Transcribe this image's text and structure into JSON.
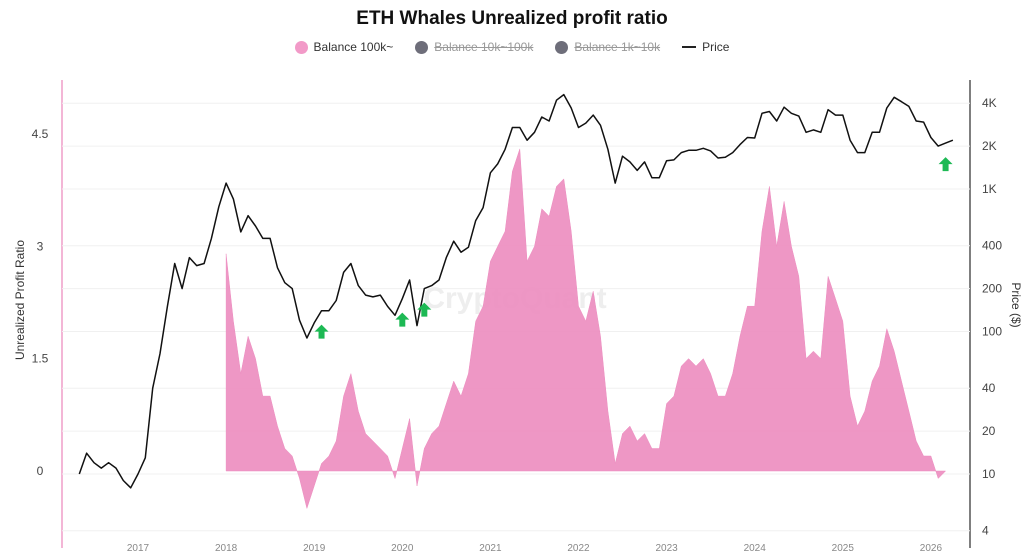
{
  "chart_data": {
    "type": "area+line",
    "title": "ETH Whales Unrealized profit ratio",
    "watermark": "CryptoQuant",
    "ylabel_left": "Unrealized Profit Ratio",
    "ylabel_right": "Price ($)",
    "left_ticks": [
      "0",
      "1.5",
      "3",
      "4.5"
    ],
    "left_tick_values": [
      0,
      1.5,
      3,
      4.5
    ],
    "right_ticks": [
      "4K",
      "2K",
      "1K",
      "400",
      "200",
      "100",
      "40",
      "20",
      "10",
      "4"
    ],
    "right_tick_values": [
      4000,
      2000,
      1000,
      400,
      200,
      100,
      40,
      20,
      10,
      4
    ],
    "right_scale": "log",
    "x_ticks": [
      "2017",
      "2018",
      "2019",
      "2020",
      "2021",
      "2022",
      "2023",
      "2024",
      "2025",
      "2026"
    ],
    "grid": true,
    "legend_position": "top",
    "legend": [
      {
        "name": "Balance 100k~",
        "color": "#f29ac8",
        "active": true
      },
      {
        "name": "Balance 10k~100k",
        "color": "#6e6e7a",
        "active": false
      },
      {
        "name": "Balance 1k~10k",
        "color": "#6e6e7a",
        "active": false
      },
      {
        "name": "Price",
        "color": "#111111",
        "active": true
      }
    ],
    "series": [
      {
        "name": "Balance 100k~",
        "axis": "left",
        "color": "#ec8cbf",
        "start": "2018-01",
        "values": [
          2.9,
          2.0,
          1.3,
          1.8,
          1.5,
          1.0,
          1.0,
          0.6,
          0.3,
          0.2,
          -0.1,
          -0.5,
          -0.2,
          0.1,
          0.2,
          0.4,
          1.0,
          1.3,
          0.8,
          0.5,
          0.4,
          0.3,
          0.2,
          -0.1,
          0.3,
          0.7,
          -0.2,
          0.3,
          0.5,
          0.6,
          0.9,
          1.2,
          1.0,
          1.3,
          2.0,
          2.2,
          2.8,
          3.0,
          3.2,
          4.0,
          4.3,
          2.8,
          3.0,
          3.5,
          3.4,
          3.8,
          3.9,
          3.2,
          2.2,
          2.0,
          2.4,
          1.8,
          0.8,
          0.1,
          0.5,
          0.6,
          0.4,
          0.5,
          0.3,
          0.3,
          0.9,
          1.0,
          1.4,
          1.5,
          1.4,
          1.5,
          1.3,
          1.0,
          1.0,
          1.3,
          1.8,
          2.2,
          2.2,
          3.2,
          3.8,
          3.0,
          3.6,
          3.0,
          2.6,
          1.5,
          1.6,
          1.5,
          2.6,
          2.3,
          2.0,
          1.0,
          0.6,
          0.8,
          1.2,
          1.4,
          1.9,
          1.6,
          1.2,
          0.8,
          0.4,
          0.2,
          0.2,
          -0.1,
          0.0
        ]
      },
      {
        "name": "Price",
        "axis": "right",
        "color": "#111111",
        "start": "2016-05",
        "values": [
          10,
          14,
          12,
          11,
          12,
          11,
          9,
          8,
          10,
          13,
          40,
          70,
          150,
          300,
          200,
          330,
          290,
          300,
          450,
          750,
          1100,
          850,
          500,
          650,
          550,
          450,
          450,
          280,
          220,
          200,
          120,
          90,
          115,
          140,
          140,
          165,
          260,
          300,
          210,
          180,
          175,
          180,
          150,
          130,
          170,
          230,
          110,
          200,
          210,
          230,
          330,
          430,
          360,
          390,
          600,
          740,
          1300,
          1500,
          1900,
          2700,
          2700,
          2200,
          2500,
          3200,
          3000,
          4200,
          4600,
          3700,
          2700,
          2900,
          3300,
          2800,
          1900,
          1100,
          1700,
          1550,
          1350,
          1550,
          1200,
          1200,
          1580,
          1600,
          1800,
          1870,
          1870,
          1930,
          1850,
          1650,
          1670,
          1800,
          2050,
          2300,
          2280,
          3400,
          3500,
          3000,
          3750,
          3400,
          3250,
          2500,
          2600,
          2500,
          3600,
          3300,
          3300,
          2200,
          1800,
          1800,
          2500,
          2500,
          3700,
          4400,
          4100,
          3800,
          3000,
          2950,
          2300,
          2000,
          2100,
          2200
        ]
      }
    ],
    "annotations": [
      {
        "type": "up-arrow",
        "date": "2019-02",
        "color": "#1db954"
      },
      {
        "type": "up-arrow",
        "date": "2020-01",
        "color": "#1db954"
      },
      {
        "type": "up-arrow",
        "date": "2020-04",
        "color": "#1db954"
      },
      {
        "type": "up-arrow",
        "date": "2026-03",
        "color": "#1db954"
      }
    ]
  }
}
